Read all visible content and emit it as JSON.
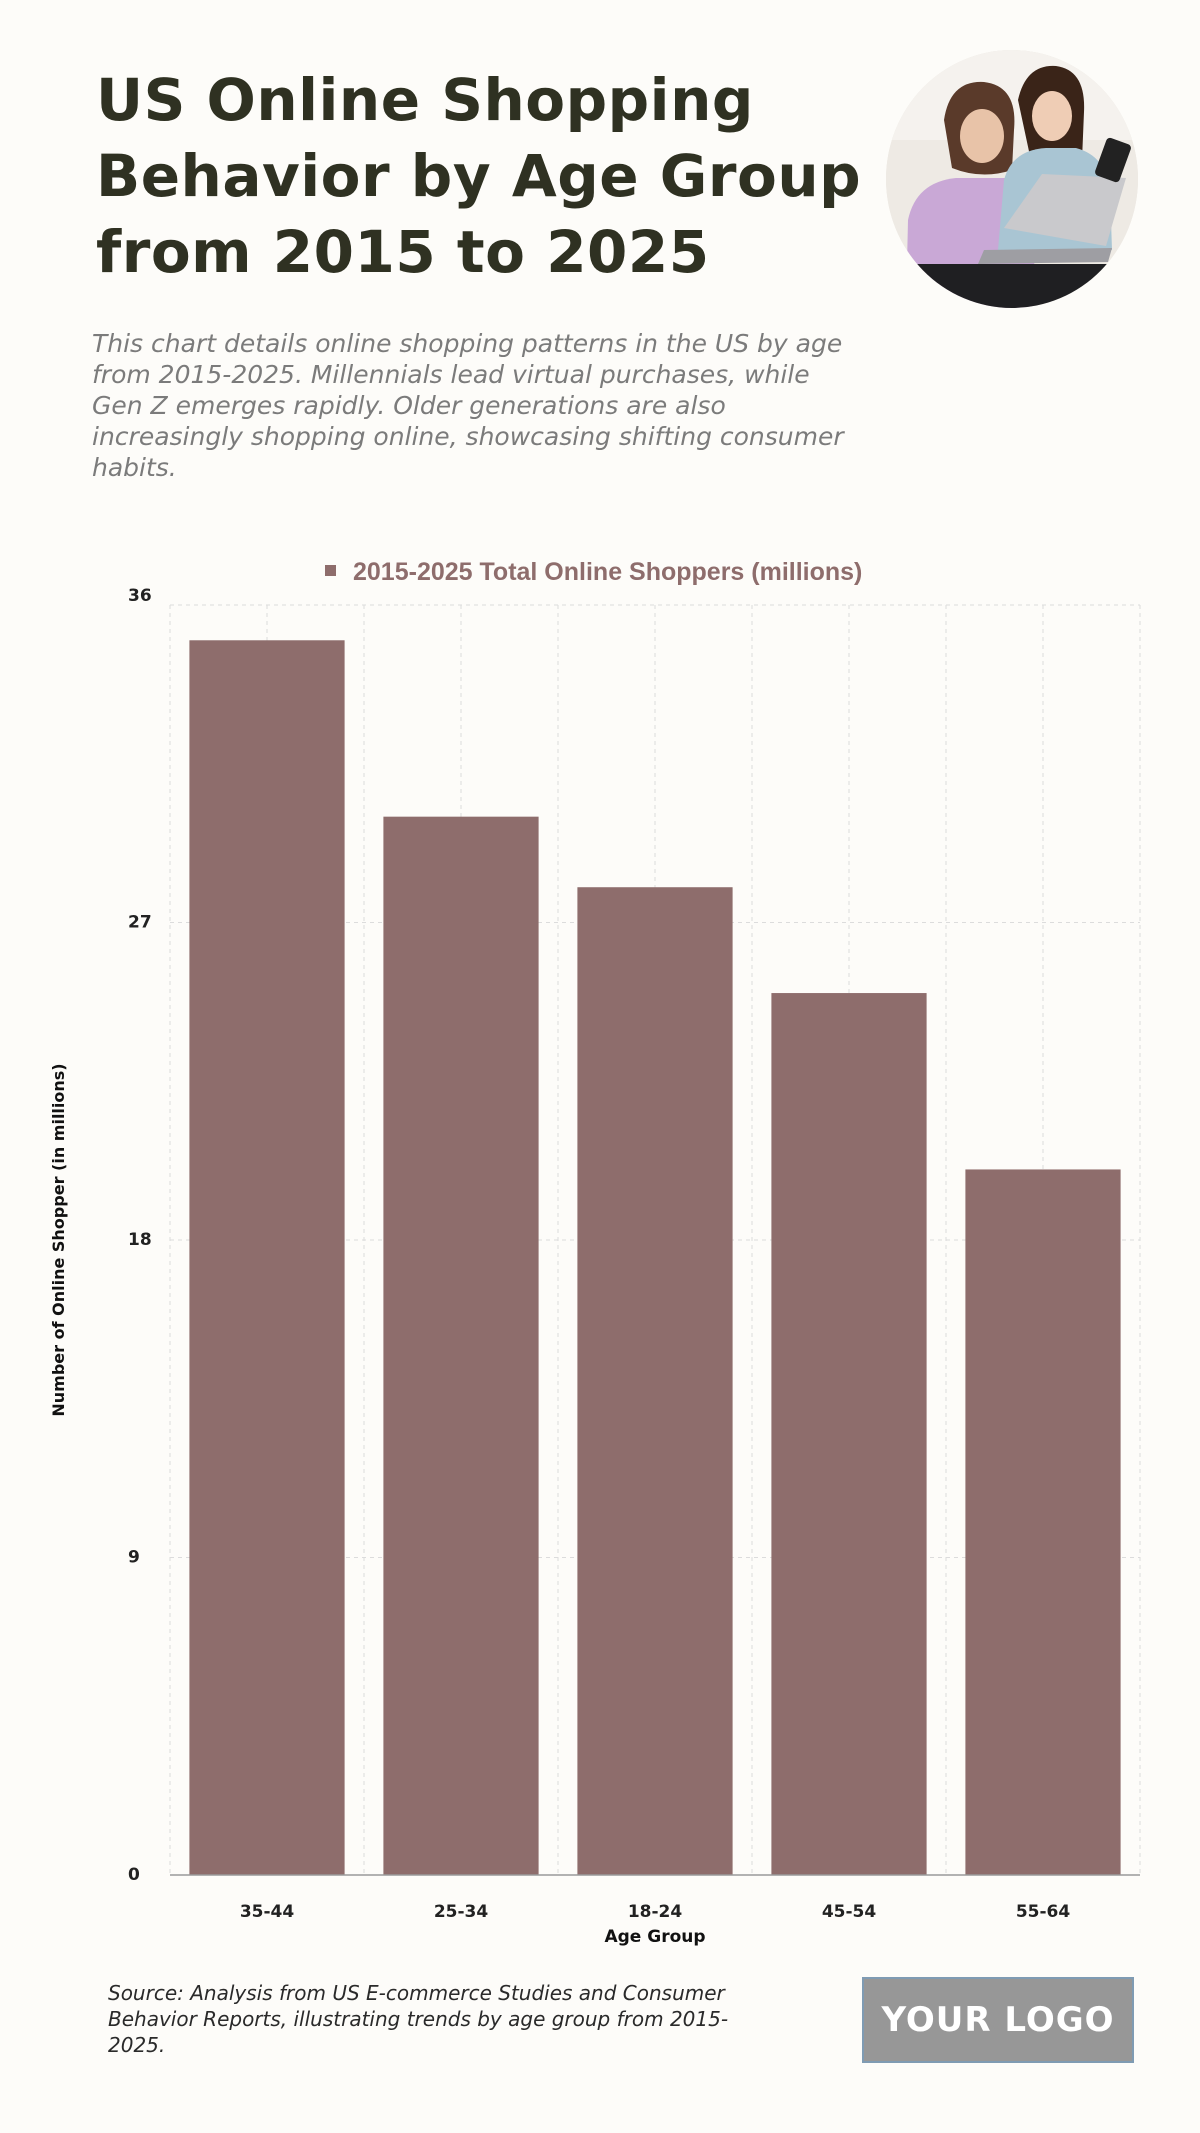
{
  "header": {
    "title": "US Online Shopping Behavior by Age Group from 2015 to 2025",
    "subtitle": "This chart details online shopping patterns in the US by age from 2015-2025. Millennials lead virtual purchases, while Gen Z emerges rapidly. Older generations are also increasingly shopping online, showcasing shifting consumer habits."
  },
  "chart_data": {
    "type": "bar",
    "title": "",
    "categories": [
      "35-44",
      "25-34",
      "18-24",
      "45-54",
      "55-64"
    ],
    "series": [
      {
        "name": "2015-2025 Total Online Shoppers (millions)",
        "values": [
          35,
          30,
          28,
          25,
          20
        ]
      }
    ],
    "xlabel": "Age Group",
    "ylabel": "Number of Online Shopper (in millions)",
    "ylim": [
      0,
      36
    ],
    "yticks": [
      0,
      9,
      18,
      27,
      36
    ],
    "grid": true,
    "legend": "top-center",
    "colors": {
      "bar": "#8e6d6c",
      "grid": "#dcdcdc",
      "axis": "#9a9a9a",
      "legend_text": "#8e6d6c"
    }
  },
  "footer": {
    "source": "Source: Analysis from US E-commerce Studies and Consumer Behavior Reports, illustrating trends by age group from 2015-2025.",
    "logo_text": "YOUR LOGO"
  },
  "icons": {
    "header_photo": "people-shopping-laptop-photo"
  }
}
